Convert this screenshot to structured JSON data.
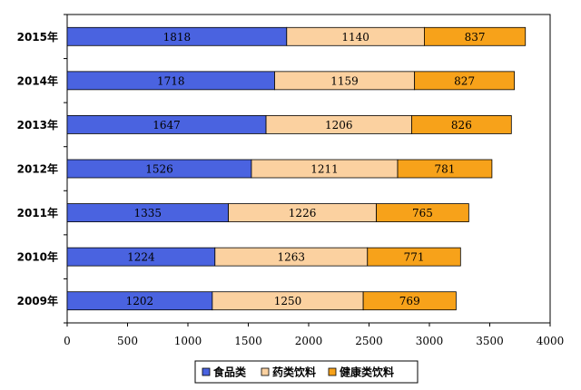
{
  "chart_data": {
    "type": "bar",
    "orientation": "horizontal",
    "stacked": true,
    "categories": [
      "2015年",
      "2014年",
      "2013年",
      "2012年",
      "2011年",
      "2010年",
      "2009年"
    ],
    "series": [
      {
        "name": "食品类",
        "color": "#4a63e0",
        "values": [
          1818,
          1718,
          1647,
          1526,
          1335,
          1224,
          1202
        ]
      },
      {
        "name": "药类饮料",
        "color": "#fbd1a0",
        "values": [
          1140,
          1159,
          1206,
          1211,
          1226,
          1263,
          1250
        ]
      },
      {
        "name": "健康类饮料",
        "color": "#f7a21a",
        "values": [
          837,
          827,
          826,
          781,
          765,
          771,
          769
        ]
      }
    ],
    "xlim": [
      0,
      4000
    ],
    "xticks": [
      "0",
      "500",
      "1000",
      "1500",
      "2000",
      "2500",
      "3000",
      "3500",
      "4000"
    ],
    "title": "",
    "xlabel": "",
    "ylabel": "",
    "grid": false,
    "legend_position": "bottom"
  }
}
